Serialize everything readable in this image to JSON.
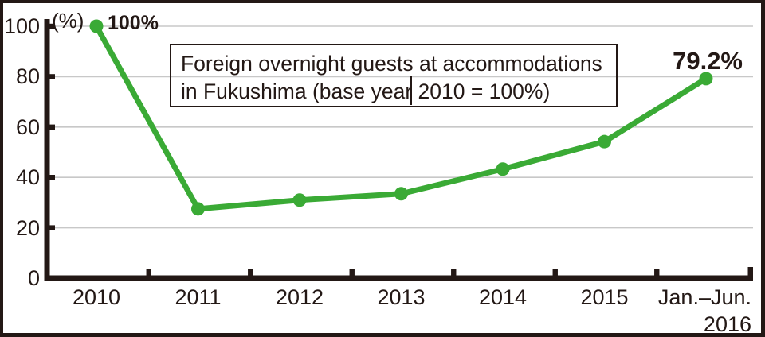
{
  "colors": {
    "ink": "#231815",
    "grid": "#c8c8c8",
    "background": "#ffffff"
  },
  "figure": {
    "unit_label": "(%)",
    "start_annotation": "100%",
    "end_annotation": "79.2%",
    "title_line1": "Foreign overnight guests at accommodations",
    "title_line2": "in Fukushima (base year 2010 = 100%)"
  },
  "chart_data": {
    "type": "line",
    "title": "Foreign overnight guests at accommodations in Fukushima (base year 2010 = 100%)",
    "categories": [
      "2010",
      "2011",
      "2012",
      "2013",
      "2014",
      "2015",
      "Jan.–Jun.\n2016"
    ],
    "values": [
      100,
      27.5,
      31,
      33.5,
      43.3,
      54.2,
      79.2
    ],
    "ylabel": "(%)",
    "ylim": [
      0,
      100
    ],
    "yticks": [
      0,
      20,
      40,
      60,
      80,
      100
    ],
    "grid": true,
    "legend": "none",
    "line_color": "#3aaa35",
    "point_labels": [
      {
        "category": "2010",
        "label": "100%"
      },
      {
        "category": "Jan.–Jun. 2016",
        "label": "79.2%"
      }
    ]
  }
}
